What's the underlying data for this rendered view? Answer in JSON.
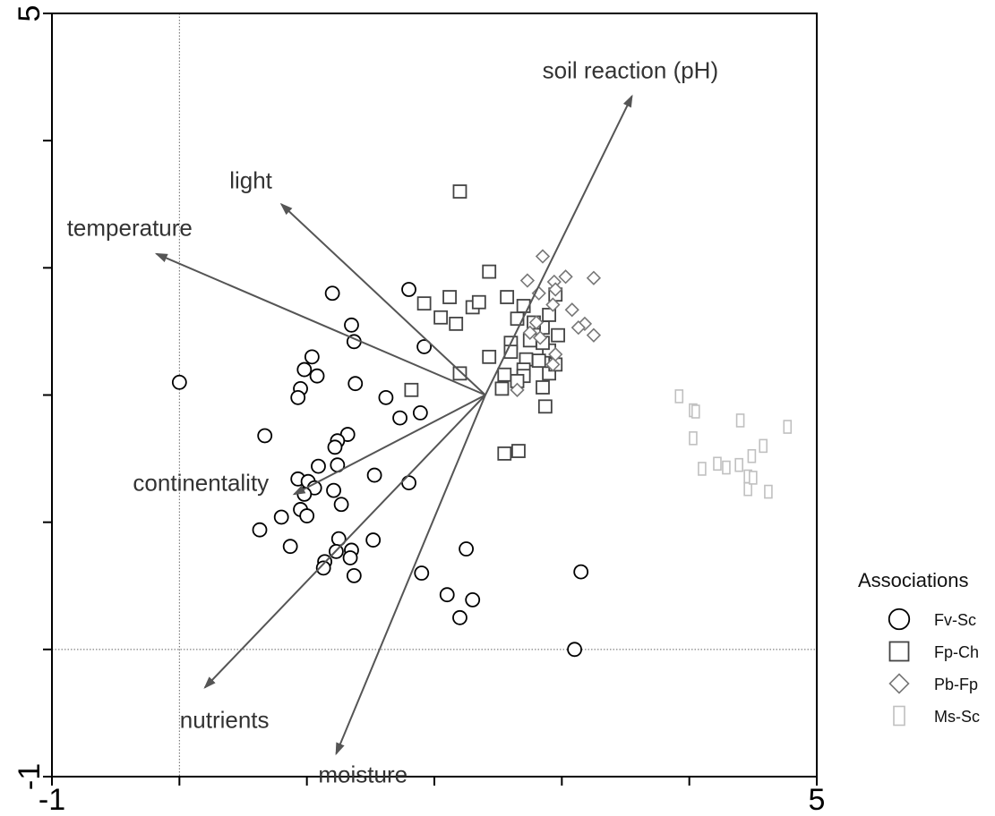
{
  "chart_data": {
    "type": "scatter",
    "title": "",
    "xlabel": "",
    "ylabel": "",
    "xlim": [
      -1,
      5
    ],
    "ylim": [
      -1,
      5
    ],
    "x_tick_labels": [
      "-1",
      "5"
    ],
    "y_tick_labels": [
      "-1",
      "5"
    ],
    "reference_lines": {
      "x": 0,
      "y": 0,
      "style": "dotted"
    },
    "grid": false,
    "vector_origin": [
      2.4,
      2.0
    ],
    "vectors": [
      {
        "label": "soil reaction (pH)",
        "end": [
          3.55,
          4.35
        ]
      },
      {
        "label": "light",
        "end": [
          0.8,
          3.5
        ]
      },
      {
        "label": "temperature",
        "end": [
          -0.18,
          3.11
        ]
      },
      {
        "label": "continentality",
        "end": [
          0.9,
          1.22
        ]
      },
      {
        "label": "nutrients",
        "end": [
          0.2,
          -0.3
        ]
      },
      {
        "label": "moisture",
        "end": [
          1.23,
          -0.82
        ]
      }
    ],
    "legend": {
      "title": "Associations",
      "position": "right",
      "entries": [
        {
          "name": "Fv-Sc",
          "marker": "circle",
          "color": "#000000"
        },
        {
          "name": "Fp-Ch",
          "marker": "square",
          "color": "#444444"
        },
        {
          "name": "Pb-Fp",
          "marker": "diamond",
          "color": "#777777"
        },
        {
          "name": "Ms-Sc",
          "marker": "rect-tall",
          "color": "#c0c0c0"
        }
      ]
    },
    "series": [
      {
        "name": "Fv-Sc",
        "marker": "circle",
        "color": "#000000",
        "points": [
          [
            0.0,
            2.1
          ],
          [
            0.67,
            1.68
          ],
          [
            1.2,
            2.8
          ],
          [
            1.35,
            2.55
          ],
          [
            1.37,
            2.42
          ],
          [
            1.8,
            2.83
          ],
          [
            1.92,
            2.38
          ],
          [
            1.04,
            2.3
          ],
          [
            0.98,
            2.2
          ],
          [
            1.08,
            2.15
          ],
          [
            0.95,
            2.05
          ],
          [
            0.93,
            1.98
          ],
          [
            1.38,
            2.09
          ],
          [
            1.62,
            1.98
          ],
          [
            1.89,
            1.86
          ],
          [
            1.73,
            1.82
          ],
          [
            1.32,
            1.69
          ],
          [
            1.24,
            1.64
          ],
          [
            1.22,
            1.59
          ],
          [
            1.24,
            1.45
          ],
          [
            1.09,
            1.44
          ],
          [
            0.93,
            1.34
          ],
          [
            1.53,
            1.37
          ],
          [
            1.8,
            1.31
          ],
          [
            1.01,
            1.32
          ],
          [
            1.21,
            1.25
          ],
          [
            1.06,
            1.27
          ],
          [
            1.27,
            1.14
          ],
          [
            0.98,
            1.22
          ],
          [
            0.95,
            1.1
          ],
          [
            0.8,
            1.04
          ],
          [
            1.0,
            1.05
          ],
          [
            0.63,
            0.94
          ],
          [
            0.87,
            0.81
          ],
          [
            1.25,
            0.87
          ],
          [
            1.35,
            0.78
          ],
          [
            1.52,
            0.86
          ],
          [
            1.23,
            0.77
          ],
          [
            1.14,
            0.69
          ],
          [
            1.34,
            0.72
          ],
          [
            1.13,
            0.64
          ],
          [
            1.37,
            0.58
          ],
          [
            1.9,
            0.6
          ],
          [
            2.25,
            0.79
          ],
          [
            2.1,
            0.43
          ],
          [
            2.3,
            0.39
          ],
          [
            2.2,
            0.25
          ],
          [
            3.15,
            0.61
          ],
          [
            3.1,
            0.0
          ]
        ]
      },
      {
        "name": "Fp-Ch",
        "marker": "square",
        "color": "#444444",
        "points": [
          [
            2.2,
            3.6
          ],
          [
            2.43,
            2.97
          ],
          [
            2.57,
            2.77
          ],
          [
            2.95,
            2.79
          ],
          [
            2.7,
            2.7
          ],
          [
            2.12,
            2.77
          ],
          [
            1.92,
            2.72
          ],
          [
            2.3,
            2.69
          ],
          [
            2.35,
            2.73
          ],
          [
            2.05,
            2.61
          ],
          [
            2.17,
            2.56
          ],
          [
            2.65,
            2.6
          ],
          [
            2.85,
            2.53
          ],
          [
            2.9,
            2.63
          ],
          [
            2.6,
            2.41
          ],
          [
            2.78,
            2.5
          ],
          [
            2.9,
            2.35
          ],
          [
            2.55,
            2.16
          ],
          [
            2.43,
            2.3
          ],
          [
            2.72,
            2.28
          ],
          [
            2.85,
            2.41
          ],
          [
            2.7,
            2.2
          ],
          [
            2.9,
            2.17
          ],
          [
            2.95,
            2.24
          ],
          [
            2.2,
            2.17
          ],
          [
            2.85,
            2.06
          ],
          [
            2.53,
            2.05
          ],
          [
            2.7,
            2.15
          ],
          [
            2.65,
            2.11
          ],
          [
            2.87,
            1.91
          ],
          [
            1.82,
            2.04
          ],
          [
            2.55,
            1.54
          ],
          [
            2.66,
            1.56
          ],
          [
            2.78,
            2.57
          ],
          [
            2.6,
            2.34
          ],
          [
            2.75,
            2.43
          ],
          [
            2.82,
            2.27
          ],
          [
            2.97,
            2.47
          ]
        ]
      },
      {
        "name": "Pb-Fp",
        "marker": "diamond",
        "color": "#777777",
        "points": [
          [
            2.85,
            3.09
          ],
          [
            2.73,
            2.9
          ],
          [
            2.94,
            2.89
          ],
          [
            3.03,
            2.93
          ],
          [
            3.25,
            2.92
          ],
          [
            2.95,
            2.83
          ],
          [
            2.82,
            2.8
          ],
          [
            2.93,
            2.71
          ],
          [
            3.08,
            2.67
          ],
          [
            2.8,
            2.57
          ],
          [
            3.18,
            2.56
          ],
          [
            3.13,
            2.53
          ],
          [
            2.75,
            2.49
          ],
          [
            3.25,
            2.47
          ],
          [
            2.93,
            2.24
          ],
          [
            2.65,
            2.04
          ],
          [
            2.83,
            2.45
          ],
          [
            2.95,
            2.32
          ]
        ]
      },
      {
        "name": "Ms-Sc",
        "marker": "rect-tall",
        "color": "#c0c0c0",
        "points": [
          [
            3.92,
            1.99
          ],
          [
            4.03,
            1.88
          ],
          [
            4.05,
            1.87
          ],
          [
            4.4,
            1.8
          ],
          [
            4.77,
            1.75
          ],
          [
            4.03,
            1.66
          ],
          [
            4.58,
            1.6
          ],
          [
            4.49,
            1.52
          ],
          [
            4.22,
            1.46
          ],
          [
            4.29,
            1.43
          ],
          [
            4.1,
            1.42
          ],
          [
            4.39,
            1.45
          ],
          [
            4.46,
            1.36
          ],
          [
            4.46,
            1.26
          ],
          [
            4.5,
            1.35
          ],
          [
            4.62,
            1.24
          ]
        ]
      }
    ]
  }
}
